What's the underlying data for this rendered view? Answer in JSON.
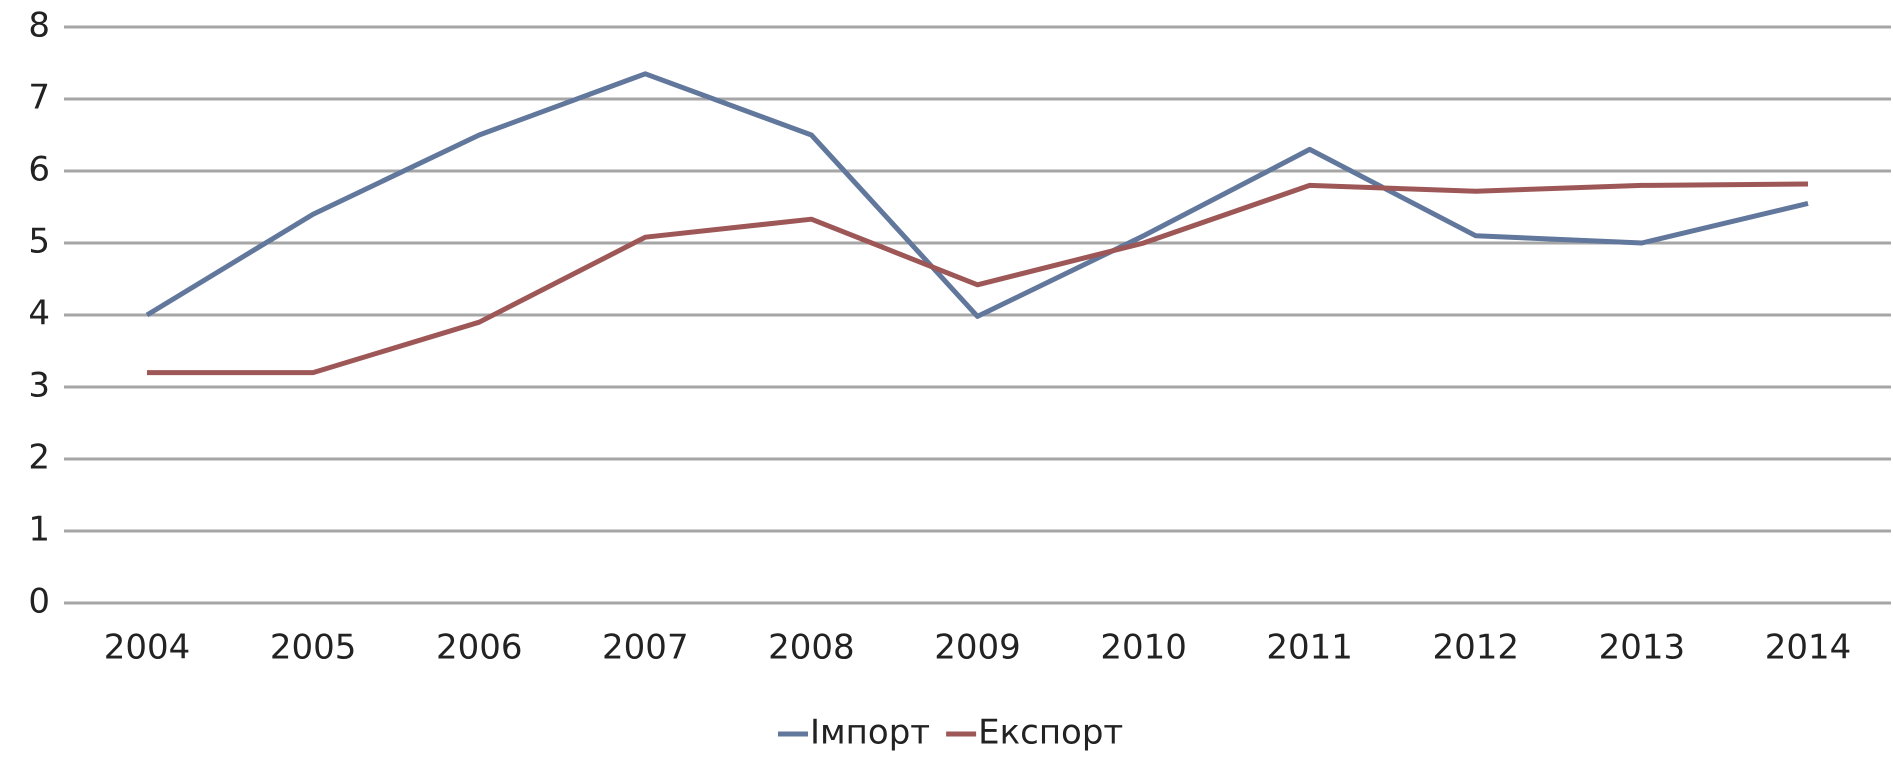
{
  "chart_data": {
    "type": "line",
    "categories": [
      "2004",
      "2005",
      "2006",
      "2007",
      "2008",
      "2009",
      "2010",
      "2011",
      "2012",
      "2013",
      "2014"
    ],
    "series": [
      {
        "name": "Імпорт",
        "color": "#61779c",
        "values": [
          4.0,
          5.4,
          6.5,
          7.35,
          6.5,
          3.98,
          5.1,
          6.3,
          5.1,
          5.0,
          5.55
        ]
      },
      {
        "name": "Експорт",
        "color": "#9e5757",
        "values": [
          3.2,
          3.2,
          3.9,
          5.08,
          5.33,
          4.42,
          5.0,
          5.8,
          5.72,
          5.8,
          5.82
        ]
      }
    ],
    "ylim": [
      0,
      8
    ],
    "yticks": [
      0,
      1,
      2,
      3,
      4,
      5,
      6,
      7,
      8
    ],
    "grid": true,
    "legend": "bottom"
  }
}
